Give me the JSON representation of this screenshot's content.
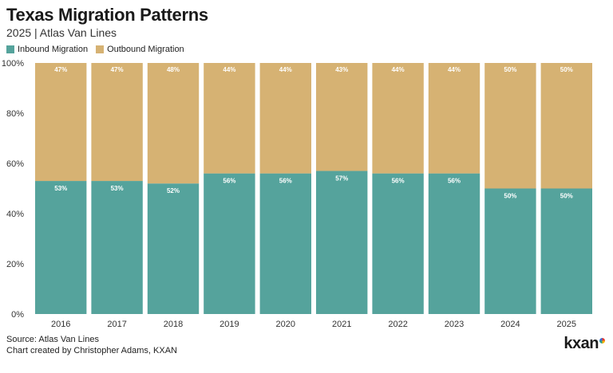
{
  "title": "Texas Migration Patterns",
  "subtitle": "2025 | Atlas Van Lines",
  "legend": {
    "inbound_label": "Inbound Migration",
    "outbound_label": "Outbound Migration"
  },
  "colors": {
    "inbound": "#55a39c",
    "outbound": "#d6b273",
    "axis_text": "#333333",
    "bar_label": "#ffffff"
  },
  "footer": {
    "source": "Source: Atlas Van Lines",
    "credit": "Chart created by Christopher Adams, KXAN"
  },
  "logo": {
    "text": "kxan"
  },
  "chart_data": {
    "type": "bar",
    "stacked": true,
    "categories": [
      "2016",
      "2017",
      "2018",
      "2019",
      "2020",
      "2021",
      "2022",
      "2023",
      "2024",
      "2025"
    ],
    "series": [
      {
        "name": "Inbound Migration",
        "values": [
          53,
          53,
          52,
          56,
          56,
          57,
          56,
          56,
          50,
          50
        ]
      },
      {
        "name": "Outbound Migration",
        "values": [
          47,
          47,
          48,
          44,
          44,
          43,
          44,
          44,
          50,
          50
        ]
      }
    ],
    "ylim": [
      0,
      100
    ],
    "yticks": [
      "0%",
      "20%",
      "40%",
      "60%",
      "80%",
      "100%"
    ],
    "value_suffix": "%",
    "legend_position": "top-left",
    "grid": false
  }
}
